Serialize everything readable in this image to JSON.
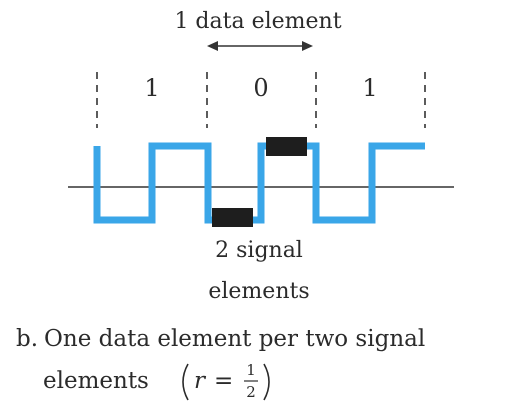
{
  "title": "1 data element",
  "bits": [
    "1",
    "0",
    "1"
  ],
  "signal_label_line1": "2 signal",
  "signal_label_line2": "elements",
  "caption": {
    "prefix": "b.",
    "line1": "One data element per two signal",
    "line2": "elements",
    "r_var": "r",
    "equals": "=",
    "frac_num": "1",
    "frac_den": "2"
  },
  "colors": {
    "signal": "#3aa6e8",
    "text": "#2b2b2b",
    "highlight": "#1e1e1e",
    "axis": "#333333",
    "divider": "#333333"
  }
}
